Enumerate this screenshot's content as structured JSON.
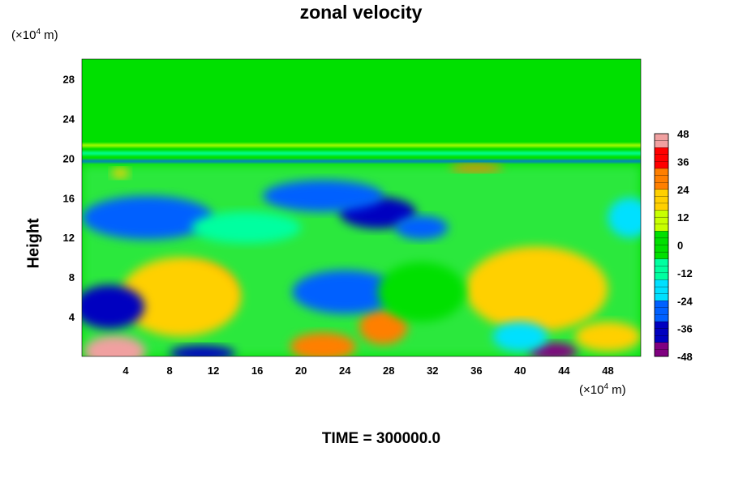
{
  "chart_data": {
    "type": "heatmap",
    "title": "zonal velocity",
    "ylabel": "Height",
    "xlabel": "",
    "x_unit": {
      "prefix": "(×10",
      "exp": "4",
      "suffix": " m)"
    },
    "y_unit": {
      "prefix": "(×10",
      "exp": "4",
      "suffix": " m)"
    },
    "xlim": [
      0,
      51
    ],
    "ylim": [
      0,
      30
    ],
    "x_ticks": [
      "4",
      "8",
      "12",
      "16",
      "20",
      "24",
      "28",
      "32",
      "36",
      "40",
      "44",
      "48"
    ],
    "y_ticks": [
      "4",
      "8",
      "12",
      "16",
      "20",
      "24",
      "28"
    ],
    "colorbar": {
      "range": [
        -48,
        48
      ],
      "ticks": [
        "48",
        "36",
        "24",
        "12",
        "0",
        "-12",
        "-24",
        "-36",
        "-48"
      ],
      "colors": [
        "#f0a0a0",
        "#ff0000",
        "#ff7f00",
        "#ffd000",
        "#c8ff00",
        "#00e000",
        "#00ffa0",
        "#00e0ff",
        "#0060ff",
        "#0000c0",
        "#800080"
      ]
    },
    "features": [
      {
        "x": 3,
        "y": 0.5,
        "value": 48,
        "rx": 2.8,
        "ry": 1.6
      },
      {
        "x": 10.5,
        "y": 6.5,
        "value": 30,
        "rx": 3.5,
        "ry": 2.8
      },
      {
        "x": 9,
        "y": 6,
        "value": 22,
        "rx": 5.5,
        "ry": 4
      },
      {
        "x": 27.5,
        "y": 3,
        "value": 28,
        "rx": 2.2,
        "ry": 1.8
      },
      {
        "x": 22,
        "y": 1,
        "value": 26,
        "rx": 3,
        "ry": 1.4
      },
      {
        "x": 41.5,
        "y": 6.8,
        "value": 34,
        "rx": 4.5,
        "ry": 3.2
      },
      {
        "x": 41.5,
        "y": 6.8,
        "value": 20,
        "rx": 6.5,
        "ry": 4.3
      },
      {
        "x": 36,
        "y": 19,
        "value": 26,
        "rx": 2.4,
        "ry": 0.4
      },
      {
        "x": 3.5,
        "y": 18.5,
        "value": 22,
        "rx": 0.8,
        "ry": 0.5
      },
      {
        "x": 43,
        "y": 0.5,
        "value": -48,
        "rx": 2.2,
        "ry": 0.9
      },
      {
        "x": 11,
        "y": 0.3,
        "value": -40,
        "rx": 3,
        "ry": 0.8
      },
      {
        "x": 2.5,
        "y": 5,
        "value": -34,
        "rx": 3.2,
        "ry": 2.2
      },
      {
        "x": 24,
        "y": 6.5,
        "value": -32,
        "rx": 4.8,
        "ry": 2.2
      },
      {
        "x": 27,
        "y": 14.5,
        "value": -42,
        "rx": 3.5,
        "ry": 1.6
      },
      {
        "x": 22,
        "y": 16.2,
        "value": -28,
        "rx": 5.5,
        "ry": 1.6
      },
      {
        "x": 6,
        "y": 14,
        "value": -24,
        "rx": 6,
        "ry": 2.2
      },
      {
        "x": 31,
        "y": 13,
        "value": -26,
        "rx": 2.4,
        "ry": 1.2
      },
      {
        "x": 15,
        "y": 13,
        "value": -14,
        "rx": 5,
        "ry": 1.6
      },
      {
        "x": 50,
        "y": 14,
        "value": -18,
        "rx": 2,
        "ry": 2
      },
      {
        "x": 40,
        "y": 2,
        "value": -22,
        "rx": 2.5,
        "ry": 1.5
      },
      {
        "x": 31,
        "y": 6.5,
        "value": -4,
        "rx": 4,
        "ry": 3
      },
      {
        "x": 48,
        "y": 2,
        "value": 20,
        "rx": 3,
        "ry": 1.5
      }
    ],
    "bands": [
      {
        "y": 20.5,
        "value": -10,
        "thickness": 0.35
      },
      {
        "y": 19.7,
        "value": -26,
        "thickness": 0.25
      },
      {
        "y": 21.3,
        "value": 8,
        "thickness": 0.3
      }
    ],
    "background_value": 0
  },
  "footer_label": "TIME = 300000.0"
}
